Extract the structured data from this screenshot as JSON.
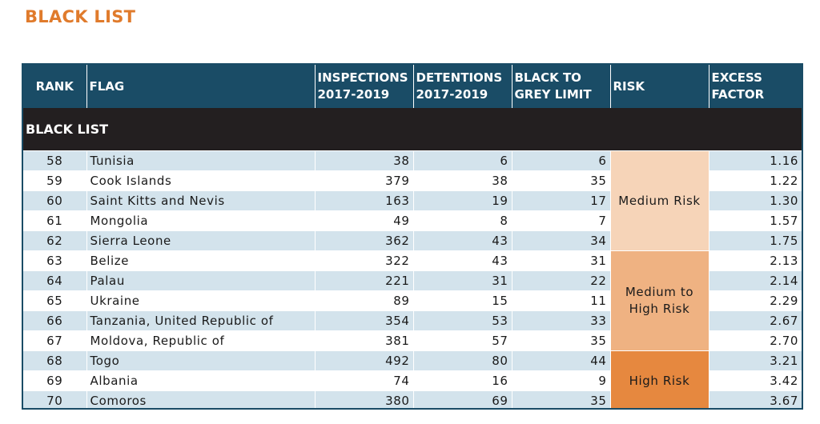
{
  "page": {
    "title": "BLACK LIST"
  },
  "table": {
    "headers": {
      "rank": "RANK",
      "flag": "FLAG",
      "inspections": [
        "INSPECTIONS",
        "2017-2019"
      ],
      "detentions": [
        "DETENTIONS",
        "2017-2019"
      ],
      "black_to_grey": [
        "BLACK TO",
        "GREY LIMIT"
      ],
      "risk": "RISK",
      "excess": [
        "EXCESS",
        "FACTOR"
      ]
    },
    "section_label": "BLACK LIST",
    "rows": [
      {
        "rank": "58",
        "flag": "Tunisia",
        "inspections": "38",
        "detentions": "6",
        "limit": "6",
        "excess": "1.16"
      },
      {
        "rank": "59",
        "flag": "Cook Islands",
        "inspections": "379",
        "detentions": "38",
        "limit": "35",
        "excess": "1.22"
      },
      {
        "rank": "60",
        "flag": "Saint Kitts and Nevis",
        "inspections": "163",
        "detentions": "19",
        "limit": "17",
        "excess": "1.30"
      },
      {
        "rank": "61",
        "flag": "Mongolia",
        "inspections": "49",
        "detentions": "8",
        "limit": "7",
        "excess": "1.57"
      },
      {
        "rank": "62",
        "flag": "Sierra Leone",
        "inspections": "362",
        "detentions": "43",
        "limit": "34",
        "excess": "1.75"
      },
      {
        "rank": "63",
        "flag": "Belize",
        "inspections": "322",
        "detentions": "43",
        "limit": "31",
        "excess": "2.13"
      },
      {
        "rank": "64",
        "flag": "Palau",
        "inspections": "221",
        "detentions": "31",
        "limit": "22",
        "excess": "2.14"
      },
      {
        "rank": "65",
        "flag": "Ukraine",
        "inspections": "89",
        "detentions": "15",
        "limit": "11",
        "excess": "2.29"
      },
      {
        "rank": "66",
        "flag": "Tanzania, United Republic of",
        "inspections": "354",
        "detentions": "53",
        "limit": "33",
        "excess": "2.67"
      },
      {
        "rank": "67",
        "flag": "Moldova, Republic of",
        "inspections": "381",
        "detentions": "57",
        "limit": "35",
        "excess": "2.70"
      },
      {
        "rank": "68",
        "flag": "Togo",
        "inspections": "492",
        "detentions": "80",
        "limit": "44",
        "excess": "3.21"
      },
      {
        "rank": "69",
        "flag": "Albania",
        "inspections": "74",
        "detentions": "16",
        "limit": "9",
        "excess": "3.42"
      },
      {
        "rank": "70",
        "flag": "Comoros",
        "inspections": "380",
        "detentions": "69",
        "limit": "35",
        "excess": "3.67"
      }
    ],
    "risk_groups": [
      {
        "label": "Medium Risk",
        "color": "#f6d4b8"
      },
      {
        "label_lines": [
          "Medium to",
          "High Risk"
        ],
        "color": "#efb282"
      },
      {
        "label": "High Risk",
        "color": "#e6883f"
      }
    ]
  },
  "colors": {
    "title": "#e07b2c",
    "header_bg": "#1a4c66",
    "section_bg": "#231f20",
    "row_alt": "#d3e3ec"
  }
}
